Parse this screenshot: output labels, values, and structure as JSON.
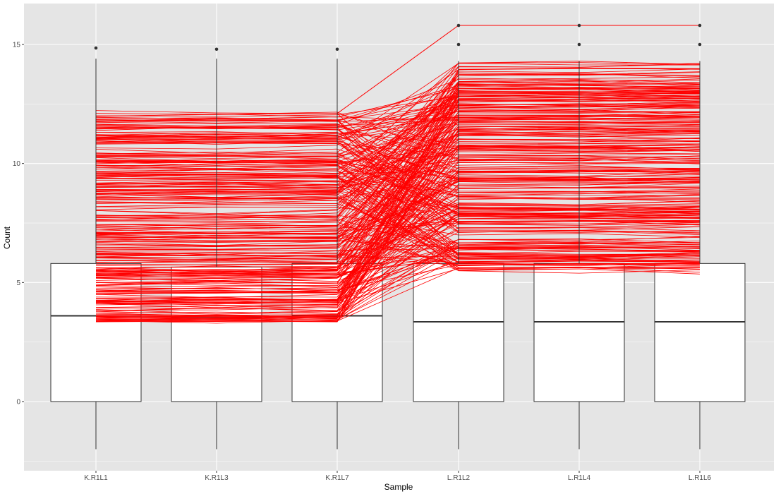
{
  "chart_data": {
    "type": "boxplot",
    "xlabel": "Sample",
    "ylabel": "Count",
    "ylim": [
      -2.9,
      16.5
    ],
    "yticks": [
      0,
      5,
      10,
      15
    ],
    "grid": true,
    "categories": [
      "K.R1L1",
      "K.R1L3",
      "K.R1L7",
      "L.R1L2",
      "L.R1L4",
      "L.R1L6"
    ],
    "boxes": [
      {
        "sample": "K.R1L1",
        "whisker_low": -2.0,
        "q1": 0.0,
        "median": 3.6,
        "q3": 5.8,
        "whisker_high": 14.4,
        "outliers": [
          14.85
        ]
      },
      {
        "sample": "K.R1L3",
        "whisker_low": -2.0,
        "q1": 0.0,
        "median": 3.55,
        "q3": 5.65,
        "whisker_high": 14.4,
        "outliers": [
          14.8
        ]
      },
      {
        "sample": "K.R1L7",
        "whisker_low": -2.0,
        "q1": 0.0,
        "median": 3.6,
        "q3": 5.8,
        "whisker_high": 14.4,
        "outliers": [
          14.8
        ]
      },
      {
        "sample": "L.R1L2",
        "whisker_low": -2.0,
        "q1": 0.0,
        "median": 3.35,
        "q3": 5.8,
        "whisker_high": 14.3,
        "outliers": [
          15.0,
          15.8
        ]
      },
      {
        "sample": "L.R1L4",
        "whisker_low": -2.0,
        "q1": 0.0,
        "median": 3.35,
        "q3": 5.8,
        "whisker_high": 14.3,
        "outliers": [
          15.0,
          15.8
        ]
      },
      {
        "sample": "L.R1L6",
        "whisker_low": -2.0,
        "q1": 0.0,
        "median": 3.35,
        "q3": 5.8,
        "whisker_high": 14.3,
        "outliers": [
          15.0,
          15.8
        ]
      }
    ],
    "profile_lines": {
      "color": "#ff0000",
      "top_line": [
        15.8,
        15.8,
        15.8
      ],
      "k_group_range": [
        3.4,
        12.2
      ],
      "l_group_range": [
        3.9,
        14.3
      ]
    },
    "colors": {
      "panel": "#e5e5e5",
      "grid_major": "#ffffff",
      "box_fill": "#ffffff",
      "box_stroke": "#333333",
      "line": "#ff0000"
    }
  }
}
